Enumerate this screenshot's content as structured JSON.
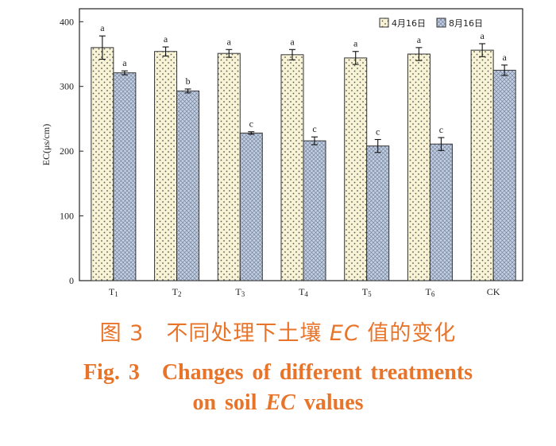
{
  "chart_data": {
    "type": "bar",
    "ylabel": "EC(μs/cm)",
    "ylim": [
      0,
      420
    ],
    "yticks": [
      0,
      100,
      200,
      300,
      400
    ],
    "categories": [
      {
        "main": "T",
        "sub": "1"
      },
      {
        "main": "T",
        "sub": "2"
      },
      {
        "main": "T",
        "sub": "3"
      },
      {
        "main": "T",
        "sub": "4"
      },
      {
        "main": "T",
        "sub": "5"
      },
      {
        "main": "T",
        "sub": "6"
      },
      {
        "main": "CK",
        "sub": ""
      }
    ],
    "series": [
      {
        "name": "4月16日",
        "values": [
          360,
          354,
          351,
          349,
          344,
          350,
          356
        ],
        "errors": [
          18,
          7,
          6,
          8,
          10,
          10,
          10
        ],
        "letters": [
          "a",
          "a",
          "a",
          "a",
          "a",
          "a",
          "a"
        ],
        "fill": "#f8f3d5",
        "pattern": "dots"
      },
      {
        "name": "8月16日",
        "values": [
          321,
          293,
          228,
          216,
          208,
          211,
          325
        ],
        "errors": [
          3,
          3,
          2,
          6,
          10,
          10,
          8
        ],
        "letters": [
          "a",
          "b",
          "c",
          "c",
          "c",
          "c",
          "a"
        ],
        "fill": "#c4cfdf",
        "pattern": "crosshatch"
      }
    ],
    "legend_position": "top-right",
    "grid": false
  },
  "caption": {
    "cn_prefix": "图 3　不同处理下土壤 ",
    "cn_em": "EC",
    "cn_suffix": " 值的变化",
    "en_line1": "Fig. 3　Changes of different treatments",
    "en_line2_prefix": "on soil ",
    "en_line2_em": "EC",
    "en_line2_suffix": " values"
  }
}
